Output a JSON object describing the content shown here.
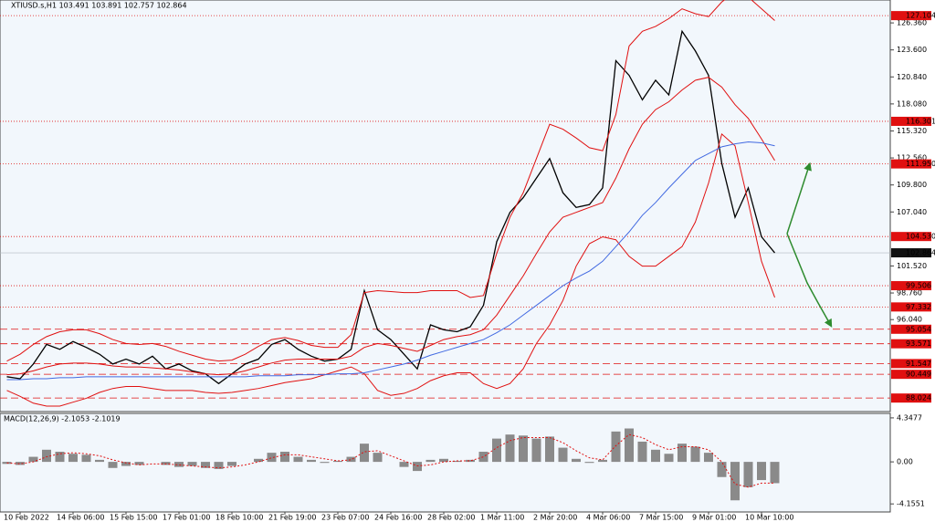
{
  "chart_data": [
    {
      "type": "line",
      "title": "XTIUSD.s,H1  103.491 103.891 102.757 102.864",
      "ylim": [
        86.64,
        128.7
      ],
      "yticks": [
        {
          "value": 126.36,
          "label": "126.360"
        },
        {
          "value": 123.6,
          "label": "123.600"
        },
        {
          "value": 120.84,
          "label": "120.840"
        },
        {
          "value": 118.08,
          "label": "118.080"
        },
        {
          "value": 115.32,
          "label": "115.320"
        },
        {
          "value": 112.56,
          "label": "112.560"
        },
        {
          "value": 109.8,
          "label": "109.800"
        },
        {
          "value": 107.04,
          "label": "107.040"
        },
        {
          "value": 101.52,
          "label": "101.520"
        },
        {
          "value": 98.76,
          "label": "98.760"
        },
        {
          "value": 96.04,
          "label": "96.040"
        }
      ],
      "levels": [
        {
          "value": 127.104,
          "label": "127.104",
          "style": "dotted"
        },
        {
          "value": 116.301,
          "label": "116.301",
          "style": "dotted"
        },
        {
          "value": 111.95,
          "label": "111.950",
          "style": "dotted"
        },
        {
          "value": 104.53,
          "label": "104.530",
          "style": "dotted"
        },
        {
          "value": 99.506,
          "label": "99.506",
          "style": "dotted"
        },
        {
          "value": 97.332,
          "label": "97.332",
          "style": "dotted"
        },
        {
          "value": 95.054,
          "label": "95.054",
          "style": "dashed"
        },
        {
          "value": 93.571,
          "label": "93.571",
          "style": "dashed"
        },
        {
          "value": 91.547,
          "label": "91.547",
          "style": "dashed"
        },
        {
          "value": 90.449,
          "label": "90.449",
          "style": "dashed"
        },
        {
          "value": 88.024,
          "label": "88.024",
          "style": "dashed"
        }
      ],
      "level_color": "#e01010",
      "last_price": {
        "value": 102.864,
        "label": "102.864"
      },
      "series": [
        {
          "color": "#000000",
          "values": [
            90.2,
            90.0,
            91.5,
            93.5,
            93.0,
            93.8,
            93.2,
            92.5,
            91.5,
            92.0,
            91.5,
            92.3,
            91.0,
            91.5,
            90.8,
            90.5,
            89.5,
            90.5,
            91.5,
            92.0,
            93.5,
            94.0,
            93.0,
            92.3,
            91.8,
            92.0,
            93.0,
            99.0,
            95.0,
            94.0,
            92.5,
            91.0,
            95.5,
            95.0,
            94.8,
            95.3,
            97.5,
            104.0,
            107.0,
            108.5,
            110.5,
            112.5,
            109.0,
            107.5,
            107.8,
            109.5,
            122.5,
            121.0,
            118.5,
            120.5,
            119.0,
            125.5,
            123.5,
            121.0,
            112.0,
            106.5,
            109.5,
            104.5,
            102.864
          ]
        },
        {
          "color": "#e01010",
          "values": [
            91.8,
            92.5,
            93.5,
            94.3,
            94.8,
            95.0,
            95.0,
            94.6,
            94.0,
            93.6,
            93.5,
            93.6,
            93.3,
            92.8,
            92.4,
            92.0,
            91.8,
            91.9,
            92.5,
            93.3,
            94.0,
            94.2,
            93.9,
            93.4,
            93.2,
            93.2,
            94.5,
            98.8,
            99.0,
            98.9,
            98.8,
            98.8,
            99.0,
            99.0,
            99.0,
            98.3,
            98.5,
            102.8,
            106.5,
            109.0,
            112.5,
            116.0,
            115.5,
            114.6,
            113.6,
            113.3,
            117.0,
            124.0,
            125.5,
            126.0,
            126.8,
            127.8,
            127.3,
            127.0,
            128.5,
            129.5,
            129.0,
            127.8,
            126.6
          ]
        },
        {
          "color": "#e01010",
          "values": [
            90.4,
            90.5,
            90.8,
            91.2,
            91.5,
            91.6,
            91.6,
            91.5,
            91.3,
            91.2,
            91.2,
            91.1,
            91.0,
            90.9,
            90.7,
            90.5,
            90.4,
            90.5,
            90.8,
            91.2,
            91.6,
            91.9,
            92.0,
            92.0,
            92.0,
            92.0,
            92.3,
            93.2,
            93.6,
            93.4,
            93.1,
            92.8,
            93.4,
            94.0,
            94.3,
            94.5,
            95.0,
            96.5,
            98.5,
            100.5,
            102.8,
            105.0,
            106.5,
            107.0,
            107.5,
            108.0,
            110.5,
            113.5,
            116.0,
            117.5,
            118.3,
            119.5,
            120.5,
            120.8,
            119.8,
            118.0,
            116.6,
            114.5,
            112.3
          ]
        },
        {
          "color": "#e01010",
          "values": [
            88.8,
            88.2,
            87.5,
            87.2,
            87.2,
            87.6,
            88.0,
            88.6,
            89.0,
            89.2,
            89.2,
            89.0,
            88.8,
            88.8,
            88.8,
            88.6,
            88.5,
            88.6,
            88.8,
            89.0,
            89.3,
            89.6,
            89.8,
            90.0,
            90.4,
            90.8,
            91.2,
            90.5,
            88.8,
            88.3,
            88.5,
            89.0,
            89.8,
            90.3,
            90.6,
            90.6,
            89.5,
            89.0,
            89.5,
            91.0,
            93.6,
            95.5,
            98.0,
            101.5,
            103.8,
            104.5,
            104.2,
            102.5,
            101.5,
            101.5,
            102.5,
            103.5,
            106.0,
            110.0,
            115.0,
            113.8,
            108.0,
            102.0,
            98.3
          ]
        },
        {
          "color": "#4169e1",
          "values": [
            89.9,
            89.9,
            90.0,
            90.0,
            90.1,
            90.1,
            90.2,
            90.2,
            90.2,
            90.2,
            90.2,
            90.2,
            90.2,
            90.2,
            90.2,
            90.2,
            90.2,
            90.2,
            90.2,
            90.3,
            90.3,
            90.3,
            90.4,
            90.4,
            90.4,
            90.5,
            90.5,
            90.6,
            90.9,
            91.2,
            91.5,
            91.9,
            92.4,
            92.8,
            93.2,
            93.6,
            94.0,
            94.7,
            95.5,
            96.5,
            97.5,
            98.5,
            99.5,
            100.3,
            101.0,
            102.0,
            103.5,
            105.0,
            106.7,
            108.0,
            109.5,
            110.9,
            112.3,
            113.0,
            113.7,
            114.0,
            114.2,
            114.1,
            113.8
          ]
        }
      ]
    },
    {
      "type": "bar",
      "title": "MACD(12,26,9) -2.1053 -2.1019",
      "categories": [
        null,
        "10 Feb 2022",
        null,
        null,
        null,
        "14 Feb 06:00",
        null,
        null,
        null,
        "15 Feb 15:00",
        null,
        null,
        null,
        "17 Feb 01:00",
        null,
        null,
        null,
        "18 Feb 10:00",
        null,
        null,
        null,
        "21 Feb 19:00",
        null,
        null,
        null,
        "23 Feb 07:00",
        null,
        null,
        null,
        "24 Feb 16:00",
        null,
        null,
        null,
        "28 Feb 02:00",
        null,
        null,
        null,
        "1 Mar 11:00",
        null,
        null,
        null,
        "2 Mar 20:00",
        null,
        null,
        null,
        "4 Mar 06:00",
        null,
        null,
        null,
        "7 Mar 15:00",
        null,
        null,
        null,
        "9 Mar 01:00",
        null,
        null,
        null,
        "10 Mar 10:00",
        null
      ],
      "ylim": [
        -4.95,
        4.79
      ],
      "yticks": [
        4.3477,
        {
          "value": 0,
          "label": "0.00"
        },
        -4.1551
      ],
      "series": [
        {
          "color": "#8a8a8a",
          "values": [
            -0.2,
            -0.3,
            0.5,
            1.2,
            1.0,
            0.8,
            0.7,
            0.2,
            -0.6,
            -0.4,
            -0.3,
            0.0,
            -0.3,
            -0.5,
            -0.4,
            -0.6,
            -0.7,
            -0.4,
            0.0,
            0.3,
            0.9,
            1.0,
            0.5,
            0.2,
            -0.1,
            0.1,
            0.5,
            1.8,
            0.9,
            0.0,
            -0.5,
            -0.9,
            0.2,
            0.3,
            0.1,
            0.2,
            1.0,
            2.3,
            2.7,
            2.6,
            2.3,
            2.5,
            1.4,
            0.3,
            -0.1,
            0.2,
            3.0,
            3.3,
            2.0,
            1.2,
            0.8,
            1.8,
            1.5,
            0.9,
            -1.5,
            -3.8,
            -2.5,
            -1.8,
            -2.1053
          ]
        },
        {
          "color": "#e01010",
          "values": [
            -0.1,
            -0.2,
            0.0,
            0.5,
            0.8,
            0.9,
            0.8,
            0.6,
            0.2,
            -0.1,
            -0.3,
            -0.2,
            -0.2,
            -0.3,
            -0.4,
            -0.5,
            -0.6,
            -0.5,
            -0.3,
            0.0,
            0.4,
            0.7,
            0.7,
            0.5,
            0.3,
            0.1,
            0.2,
            1.0,
            1.1,
            0.6,
            0.1,
            -0.4,
            -0.3,
            0.0,
            0.1,
            0.1,
            0.5,
            1.4,
            2.1,
            2.4,
            2.4,
            2.4,
            1.9,
            1.1,
            0.4,
            0.2,
            1.6,
            2.7,
            2.4,
            1.7,
            1.2,
            1.5,
            1.5,
            1.2,
            0.0,
            -2.2,
            -2.5,
            -2.1,
            -2.1019
          ]
        }
      ]
    }
  ]
}
